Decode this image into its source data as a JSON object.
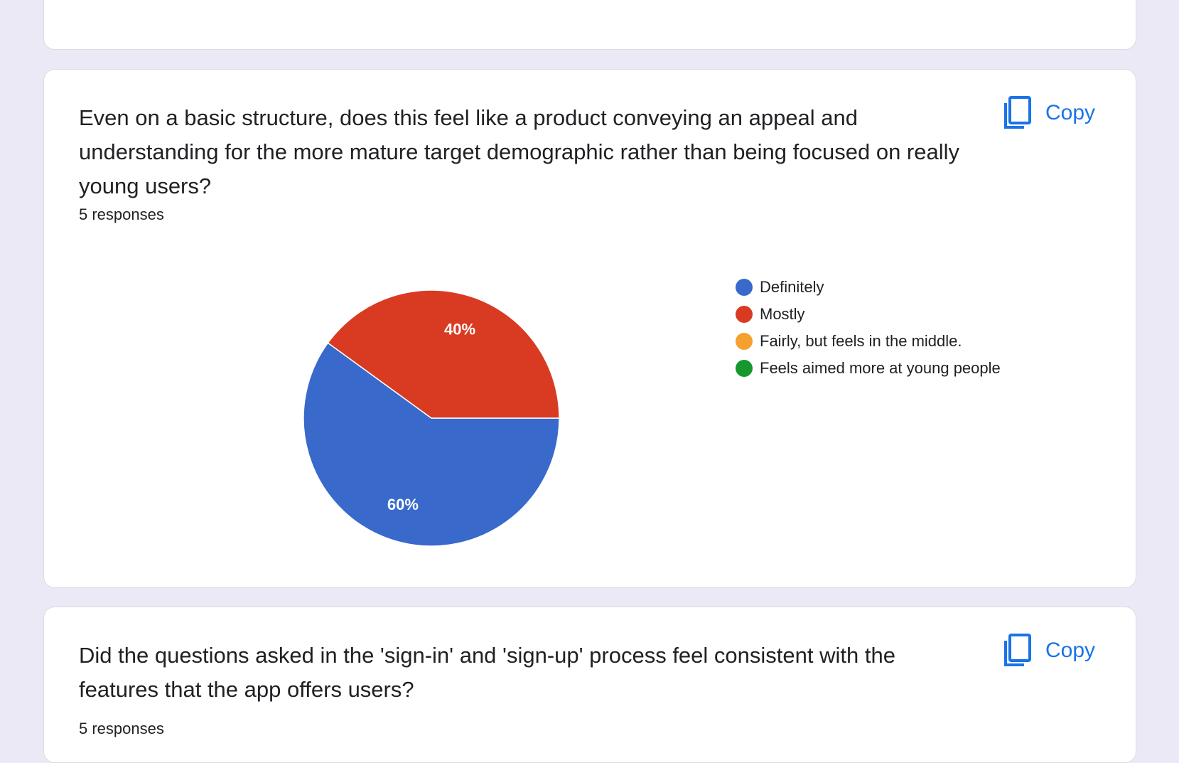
{
  "copy_label": "Copy",
  "questions": [
    {
      "title": "Even on a basic structure, does this feel like a product conveying an appeal and understanding for the more mature target demographic rather than being focused on really young users?",
      "responses": "5 responses"
    },
    {
      "title": "Did the questions asked in the 'sign-in' and 'sign-up' process feel consistent with the features that the app offers users?",
      "responses": "5 responses"
    }
  ],
  "colors": {
    "accent": "#1a73e8",
    "definitely": "#3869cb",
    "mostly": "#d93b22",
    "fairly": "#f6a02f",
    "young": "#16982f"
  },
  "icons": {
    "copy": "copy-icon"
  },
  "chart_data": {
    "type": "pie",
    "categories": [
      "Definitely",
      "Mostly",
      "Fairly, but feels in the middle.",
      "Feels aimed more at young people"
    ],
    "values": [
      60,
      40,
      0,
      0
    ],
    "labels": [
      "60%",
      "40%",
      "",
      ""
    ],
    "colors": [
      "#3869cb",
      "#d93b22",
      "#f6a02f",
      "#16982f"
    ],
    "legend": "right"
  }
}
